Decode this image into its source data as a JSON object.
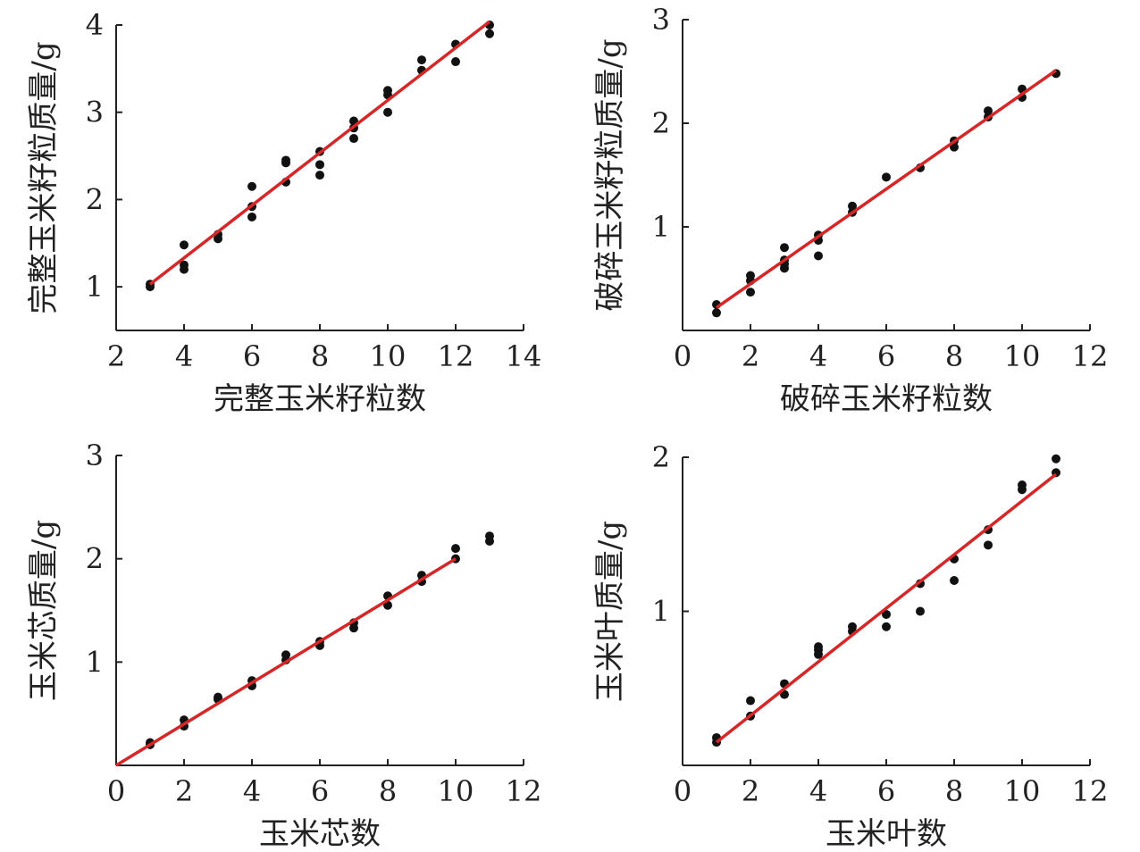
{
  "chart_data": [
    {
      "type": "scatter",
      "id": "whole-kernels",
      "xlabel": "完整玉米籽粒数",
      "ylabel": "完整玉米籽粒质量/g",
      "xlim": [
        2,
        14
      ],
      "ylim": [
        0.5,
        4
      ],
      "xticks": [
        2,
        4,
        6,
        8,
        10,
        12,
        14
      ],
      "yticks": [
        1,
        2,
        3,
        4
      ],
      "points": [
        [
          3,
          1.0
        ],
        [
          3,
          1.03
        ],
        [
          4,
          1.2
        ],
        [
          4,
          1.25
        ],
        [
          4,
          1.48
        ],
        [
          5,
          1.55
        ],
        [
          5,
          1.6
        ],
        [
          6,
          1.8
        ],
        [
          6,
          1.92
        ],
        [
          6,
          2.15
        ],
        [
          7,
          2.2
        ],
        [
          7,
          2.42
        ],
        [
          7,
          2.45
        ],
        [
          8,
          2.28
        ],
        [
          8,
          2.4
        ],
        [
          8,
          2.55
        ],
        [
          9,
          2.7
        ],
        [
          9,
          2.82
        ],
        [
          9,
          2.9
        ],
        [
          10,
          3.0
        ],
        [
          10,
          3.2
        ],
        [
          10,
          3.25
        ],
        [
          11,
          3.48
        ],
        [
          11,
          3.6
        ],
        [
          12,
          3.58
        ],
        [
          12,
          3.78
        ],
        [
          13,
          3.9
        ],
        [
          13,
          4.0
        ]
      ],
      "fit": {
        "x": [
          3,
          13
        ],
        "y": [
          1.03,
          4.04
        ]
      }
    },
    {
      "type": "scatter",
      "id": "broken-kernels",
      "xlabel": "破碎玉米籽粒数",
      "ylabel": "破碎玉米籽粒质量/g",
      "xlim": [
        0,
        12
      ],
      "ylim": [
        0,
        3
      ],
      "xticks": [
        0,
        2,
        4,
        6,
        8,
        10,
        12
      ],
      "yticks": [
        1,
        2,
        3
      ],
      "points": [
        [
          1,
          0.17
        ],
        [
          1,
          0.25
        ],
        [
          2,
          0.37
        ],
        [
          2,
          0.48
        ],
        [
          2,
          0.53
        ],
        [
          3,
          0.6
        ],
        [
          3,
          0.64
        ],
        [
          3,
          0.68
        ],
        [
          3,
          0.8
        ],
        [
          4,
          0.72
        ],
        [
          4,
          0.87
        ],
        [
          4,
          0.92
        ],
        [
          5,
          1.14
        ],
        [
          5,
          1.2
        ],
        [
          6,
          1.48
        ],
        [
          7,
          1.57
        ],
        [
          8,
          1.77
        ],
        [
          8,
          1.83
        ],
        [
          9,
          2.06
        ],
        [
          9,
          2.12
        ],
        [
          10,
          2.25
        ],
        [
          10,
          2.33
        ],
        [
          11,
          2.48
        ]
      ],
      "fit": {
        "x": [
          1,
          11
        ],
        "y": [
          0.22,
          2.51
        ]
      }
    },
    {
      "type": "scatter",
      "id": "cobs",
      "xlabel": "玉米芯数",
      "ylabel": "玉米芯质量/g",
      "xlim": [
        0,
        12
      ],
      "ylim": [
        0,
        3
      ],
      "xticks": [
        0,
        2,
        4,
        6,
        8,
        10,
        12
      ],
      "yticks": [
        1,
        2,
        3
      ],
      "points": [
        [
          1,
          0.2
        ],
        [
          1,
          0.22
        ],
        [
          2,
          0.38
        ],
        [
          2,
          0.44
        ],
        [
          3,
          0.64
        ],
        [
          3,
          0.66
        ],
        [
          4,
          0.77
        ],
        [
          4,
          0.82
        ],
        [
          5,
          1.02
        ],
        [
          5,
          1.07
        ],
        [
          6,
          1.16
        ],
        [
          6,
          1.2
        ],
        [
          7,
          1.33
        ],
        [
          7,
          1.38
        ],
        [
          8,
          1.55
        ],
        [
          8,
          1.64
        ],
        [
          9,
          1.78
        ],
        [
          9,
          1.84
        ],
        [
          10,
          2.0
        ],
        [
          10,
          2.1
        ],
        [
          11,
          2.17
        ],
        [
          11,
          2.22
        ]
      ],
      "fit": {
        "x": [
          0,
          10
        ],
        "y": [
          0,
          2.0
        ]
      }
    },
    {
      "type": "scatter",
      "id": "husks",
      "xlabel": "玉米叶数",
      "ylabel": "玉米叶质量/g",
      "xlim": [
        0,
        12
      ],
      "ylim": [
        0,
        2
      ],
      "xticks": [
        0,
        2,
        4,
        6,
        8,
        10,
        12
      ],
      "yticks": [
        1,
        2
      ],
      "points": [
        [
          1,
          0.15
        ],
        [
          1,
          0.18
        ],
        [
          2,
          0.32
        ],
        [
          2,
          0.42
        ],
        [
          3,
          0.46
        ],
        [
          3,
          0.53
        ],
        [
          4,
          0.72
        ],
        [
          4,
          0.75
        ],
        [
          4,
          0.77
        ],
        [
          5,
          0.87
        ],
        [
          5,
          0.9
        ],
        [
          6,
          0.9
        ],
        [
          6,
          0.98
        ],
        [
          7,
          1.0
        ],
        [
          7,
          1.18
        ],
        [
          8,
          1.2
        ],
        [
          8,
          1.34
        ],
        [
          9,
          1.43
        ],
        [
          9,
          1.53
        ],
        [
          10,
          1.79
        ],
        [
          10,
          1.82
        ],
        [
          11,
          1.9
        ],
        [
          11,
          1.99
        ]
      ],
      "fit": {
        "x": [
          1,
          11
        ],
        "y": [
          0.15,
          1.89
        ]
      }
    }
  ],
  "colors": {
    "points": "#111111",
    "fit_line": "#d62728",
    "axes": "#222222"
  }
}
